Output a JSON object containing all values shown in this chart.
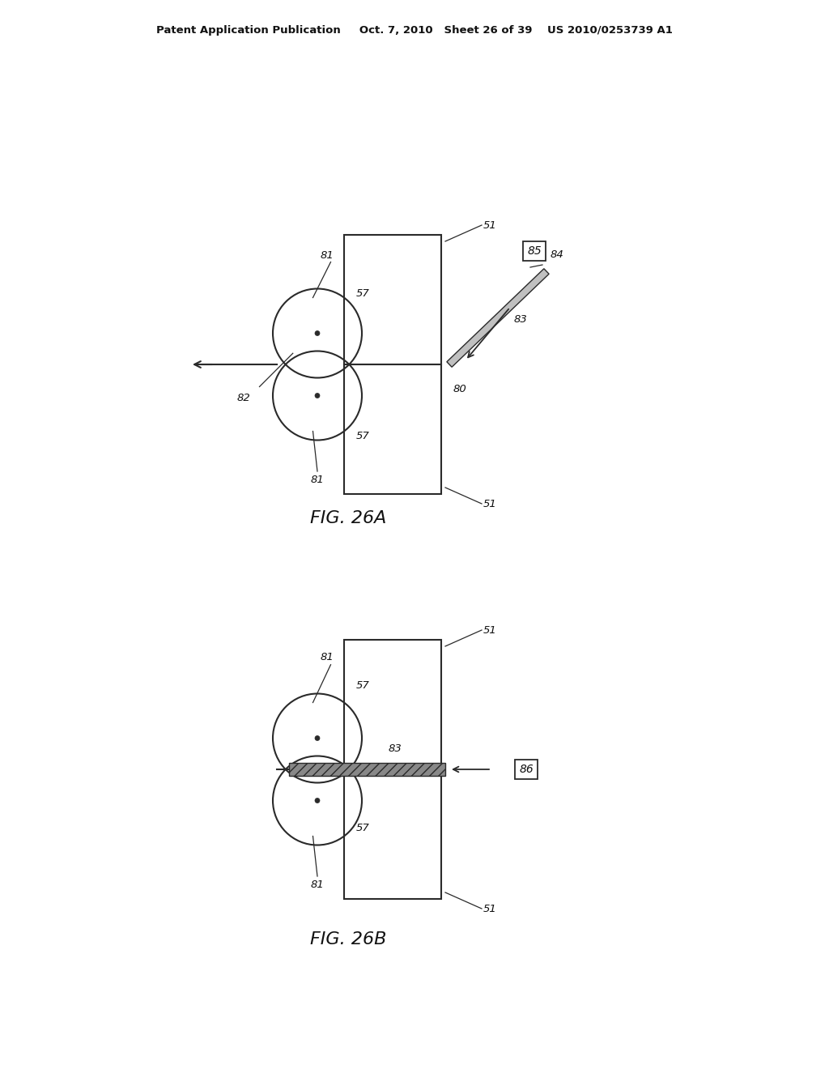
{
  "bg_color": "#ffffff",
  "line_color": "#2a2a2a",
  "header": "Patent Application Publication     Oct. 7, 2010   Sheet 26 of 39    US 2010/0253739 A1",
  "fig_a_caption": "FIG. 26A",
  "fig_b_caption": "FIG. 26B"
}
